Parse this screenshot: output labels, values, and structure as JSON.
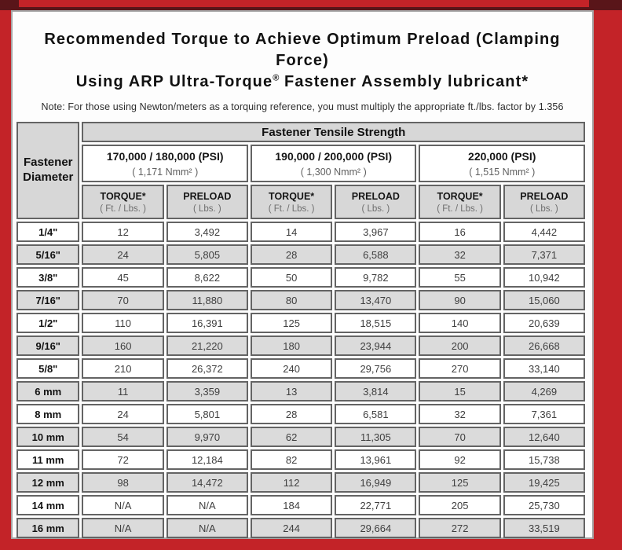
{
  "frame": {
    "border_color": "#c32328",
    "dark_strip_color": "#591519",
    "panel_border_color": "#a6a6a6"
  },
  "header": {
    "title_line1": "Recommended Torque to Achieve Optimum Preload (Clamping Force)",
    "title_line2_before": "Using ARP Ultra-Torque",
    "title_line2_sup": "®",
    "title_line2_after": " Fastener Assembly lubricant*",
    "note": "Note: For those using Newton/meters as a torquing reference, you must multiply the appropriate ft./lbs. factor by 1.356"
  },
  "table": {
    "corner_header_line1": "Fastener",
    "corner_header_line2": "Diameter",
    "group_header": "Fastener Tensile Strength",
    "strength_groups": [
      {
        "psi": "170,000 / 180,000 (PSI)",
        "nmm": "( 1,171 Nmm² )"
      },
      {
        "psi": "190,000 / 200,000 (PSI)",
        "nmm": "( 1,300 Nmm² )"
      },
      {
        "psi": "220,000 (PSI)",
        "nmm": "( 1,515 Nmm² )"
      }
    ],
    "columns": [
      {
        "label": "TORQUE*",
        "unit": "( Ft. / Lbs. )"
      },
      {
        "label": "PRELOAD",
        "unit": "( Lbs. )"
      },
      {
        "label": "TORQUE*",
        "unit": "( Ft. / Lbs. )"
      },
      {
        "label": "PRELOAD",
        "unit": "( Lbs. )"
      },
      {
        "label": "TORQUE*",
        "unit": "( Ft. / Lbs. )"
      },
      {
        "label": "PRELOAD",
        "unit": "( Lbs. )"
      }
    ],
    "rows": [
      {
        "diameter": "1/4\"",
        "values": [
          "12",
          "3,492",
          "14",
          "3,967",
          "16",
          "4,442"
        ]
      },
      {
        "diameter": "5/16\"",
        "values": [
          "24",
          "5,805",
          "28",
          "6,588",
          "32",
          "7,371"
        ]
      },
      {
        "diameter": "3/8\"",
        "values": [
          "45",
          "8,622",
          "50",
          "9,782",
          "55",
          "10,942"
        ]
      },
      {
        "diameter": "7/16\"",
        "values": [
          "70",
          "11,880",
          "80",
          "13,470",
          "90",
          "15,060"
        ]
      },
      {
        "diameter": "1/2\"",
        "values": [
          "110",
          "16,391",
          "125",
          "18,515",
          "140",
          "20,639"
        ]
      },
      {
        "diameter": "9/16\"",
        "values": [
          "160",
          "21,220",
          "180",
          "23,944",
          "200",
          "26,668"
        ]
      },
      {
        "diameter": "5/8\"",
        "values": [
          "210",
          "26,372",
          "240",
          "29,756",
          "270",
          "33,140"
        ]
      },
      {
        "diameter": "6 mm",
        "values": [
          "11",
          "3,359",
          "13",
          "3,814",
          "15",
          "4,269"
        ]
      },
      {
        "diameter": "8 mm",
        "values": [
          "24",
          "5,801",
          "28",
          "6,581",
          "32",
          "7,361"
        ]
      },
      {
        "diameter": "10 mm",
        "values": [
          "54",
          "9,970",
          "62",
          "11,305",
          "70",
          "12,640"
        ]
      },
      {
        "diameter": "11 mm",
        "values": [
          "72",
          "12,184",
          "82",
          "13,961",
          "92",
          "15,738"
        ]
      },
      {
        "diameter": "12 mm",
        "values": [
          "98",
          "14,472",
          "112",
          "16,949",
          "125",
          "19,425"
        ]
      },
      {
        "diameter": "14 mm",
        "values": [
          "N/A",
          "N/A",
          "184",
          "22,771",
          "205",
          "25,730"
        ]
      },
      {
        "diameter": "16 mm",
        "values": [
          "N/A",
          "N/A",
          "244",
          "29,664",
          "272",
          "33,519"
        ]
      }
    ]
  }
}
